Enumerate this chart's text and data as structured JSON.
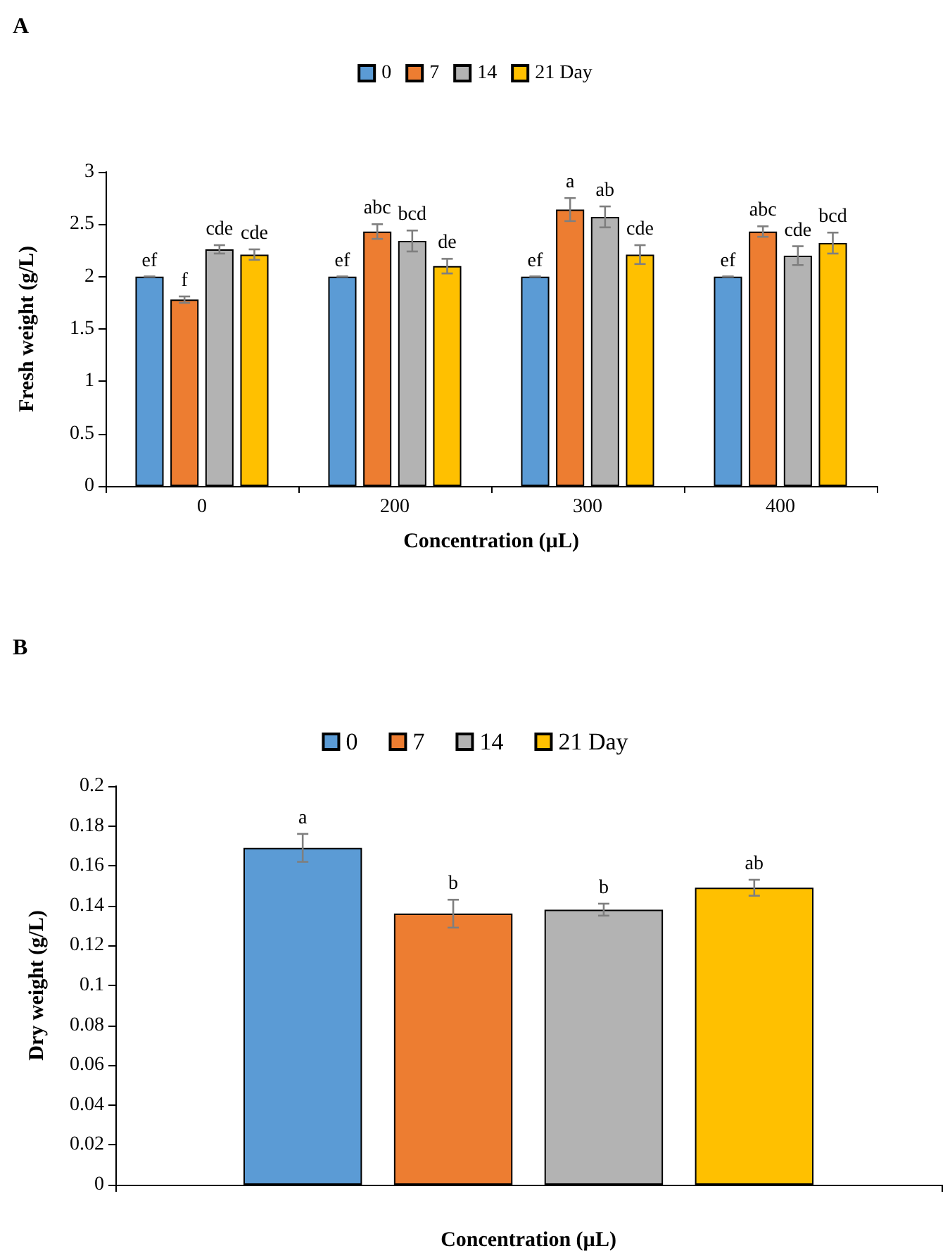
{
  "chart_data": [
    {
      "type": "bar",
      "title": "A",
      "xlabel": "Concentration (µL)",
      "ylabel": "Fresh weight (g/L)",
      "categories": [
        "0",
        "200",
        "300",
        "400"
      ],
      "series": [
        {
          "name": "0",
          "color": "#5b9bd5",
          "values": [
            2.0,
            2.0,
            2.0,
            2.0
          ],
          "errors": [
            0,
            0,
            0,
            0
          ],
          "value_labels": [
            "ef",
            "ef",
            "ef",
            "ef"
          ]
        },
        {
          "name": "7",
          "color": "#ed7d31",
          "values": [
            1.78,
            2.43,
            2.64,
            2.43
          ],
          "errors": [
            0.03,
            0.07,
            0.11,
            0.05
          ],
          "value_labels": [
            "f",
            "abc",
            "a",
            "abc"
          ]
        },
        {
          "name": "14",
          "color": "#b3b3b3",
          "values": [
            2.26,
            2.34,
            2.57,
            2.2
          ],
          "errors": [
            0.04,
            0.1,
            0.1,
            0.09
          ],
          "value_labels": [
            "cde",
            "bcd",
            "ab",
            "cde"
          ]
        },
        {
          "name": "21 Day",
          "color": "#ffc000",
          "values": [
            2.21,
            2.1,
            2.21,
            2.32
          ],
          "errors": [
            0.05,
            0.07,
            0.09,
            0.1
          ],
          "value_labels": [
            "cde",
            "de",
            "cde",
            "bcd"
          ]
        }
      ],
      "ylim": [
        0,
        3
      ],
      "yticks": [
        0,
        0.5,
        1,
        1.5,
        2,
        2.5,
        3
      ],
      "grid": false,
      "legend": "top"
    },
    {
      "type": "bar",
      "title": "B",
      "xlabel": "Concentration (µL)",
      "ylabel": "Dry weight (g/L)",
      "categories": [
        null
      ],
      "series": [
        {
          "name": "0",
          "color": "#5b9bd5",
          "values": [
            0.169
          ],
          "errors": [
            0.007
          ],
          "value_labels": [
            "a"
          ]
        },
        {
          "name": "7",
          "color": "#ed7d31",
          "values": [
            0.136
          ],
          "errors": [
            0.007
          ],
          "value_labels": [
            "b"
          ]
        },
        {
          "name": "14",
          "color": "#b3b3b3",
          "values": [
            0.138
          ],
          "errors": [
            0.003
          ],
          "value_labels": [
            "b"
          ]
        },
        {
          "name": "21 Day",
          "color": "#ffc000",
          "values": [
            0.149
          ],
          "errors": [
            0.004
          ],
          "value_labels": [
            "ab"
          ]
        }
      ],
      "ylim": [
        0,
        0.2
      ],
      "yticks": [
        0,
        0.02,
        0.04,
        0.06,
        0.08,
        0.1,
        0.12,
        0.14,
        0.16,
        0.18,
        0.2
      ],
      "grid": false,
      "legend": "top"
    }
  ]
}
